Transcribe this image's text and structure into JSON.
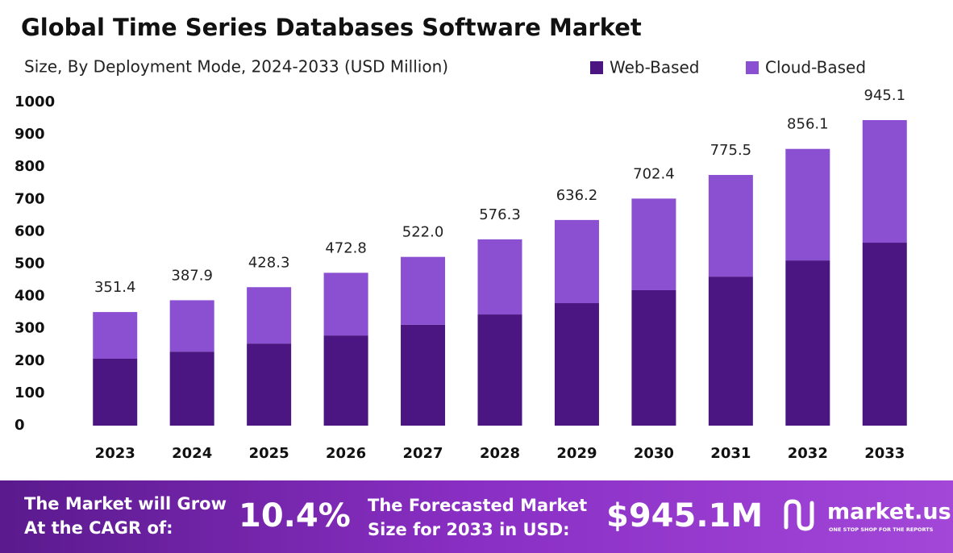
{
  "chart_data": {
    "type": "stacked_bar",
    "title": "Global Time Series Databases Software Market",
    "subtitle": "Size, By Deployment Mode, 2024-2033 (USD Million)",
    "categories": [
      "2023",
      "2024",
      "2025",
      "2026",
      "2027",
      "2028",
      "2029",
      "2030",
      "2031",
      "2032",
      "2033"
    ],
    "series": [
      {
        "name": "Web-Based",
        "color": "#4b1681",
        "values": [
          207,
          229,
          254,
          279,
          312,
          344,
          379,
          419,
          461,
          511,
          566
        ]
      },
      {
        "name": "Cloud-Based",
        "color": "#8b4fd1",
        "values": [
          144.4,
          158.9,
          174.3,
          193.8,
          210.0,
          232.3,
          257.2,
          283.4,
          314.5,
          345.1,
          379.1
        ]
      }
    ],
    "totals": {
      "values": [
        351.4,
        387.9,
        428.3,
        472.8,
        522.0,
        576.3,
        636.2,
        702.4,
        775.5,
        856.1,
        945.1
      ],
      "value_labels": [
        "351.4",
        "387.9",
        "428.3",
        "472.8",
        "522.0",
        "576.3",
        "636.2",
        "702.4",
        "775.5",
        "856.1",
        "945.1"
      ]
    },
    "ylim": [
      0,
      1000
    ],
    "yticks": [
      0,
      100,
      200,
      300,
      400,
      500,
      600,
      700,
      800,
      900,
      1000
    ],
    "grid": false,
    "legend": "top-right"
  },
  "footer": {
    "cagr_label": [
      "The Market will Grow",
      "At the CAGR of:"
    ],
    "cagr": "10.4%",
    "forecast_label": [
      "The Forecasted Market",
      "Size for 2033 in USD:"
    ],
    "forecast": "$945.1M",
    "brand": "market.us",
    "tagline": "ONE STOP SHOP FOR THE REPORTS"
  }
}
